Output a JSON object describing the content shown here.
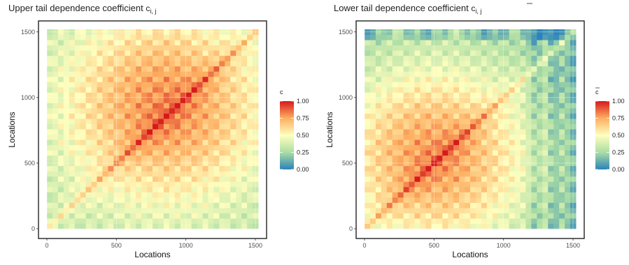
{
  "chart_data": [
    {
      "type": "heatmap",
      "title": "Upper  tail dependence coefficient",
      "title_symbol": "c",
      "title_subscript": "i, j",
      "xlabel": "Locations",
      "ylabel": "Locations",
      "xlim": [
        0,
        1520
      ],
      "ylim": [
        0,
        1520
      ],
      "x_ticks": [
        "0",
        "500",
        "1000",
        "1500"
      ],
      "y_ticks": [
        "0",
        "500",
        "1000",
        "1500"
      ],
      "grid": true,
      "legend": {
        "title": "c",
        "placement": "right",
        "ticks": [
          "0.00",
          "0.25",
          "0.50",
          "0.75",
          "1.00"
        ],
        "colors": [
          "#2b83ba",
          "#abdda4",
          "#ffffbf",
          "#fdae61",
          "#d7191c"
        ]
      },
      "center": [
        850,
        930
      ],
      "peak_value": 0.8,
      "edge_value": 0.3
    },
    {
      "type": "heatmap",
      "title": "Lower  tail dependence coefficient",
      "title_symbol": "c",
      "title_subscript": "i, j",
      "xlabel": "Locations",
      "ylabel": "Locations",
      "xlim": [
        0,
        1520
      ],
      "ylim": [
        0,
        1520
      ],
      "x_ticks": [
        "0",
        "500",
        "1000",
        "1500"
      ],
      "y_ticks": [
        "0",
        "500",
        "1000",
        "1500"
      ],
      "grid": true,
      "legend": {
        "title": "c",
        "placement": "right",
        "ticks": [
          "0.00",
          "0.25",
          "0.50",
          "0.75",
          "1.00"
        ],
        "colors": [
          "#2b83ba",
          "#abdda4",
          "#ffffbf",
          "#fdae61",
          "#d7191c"
        ]
      },
      "center": [
        500,
        550
      ],
      "peak_value": 0.78,
      "edge_value": 0.2
    }
  ]
}
